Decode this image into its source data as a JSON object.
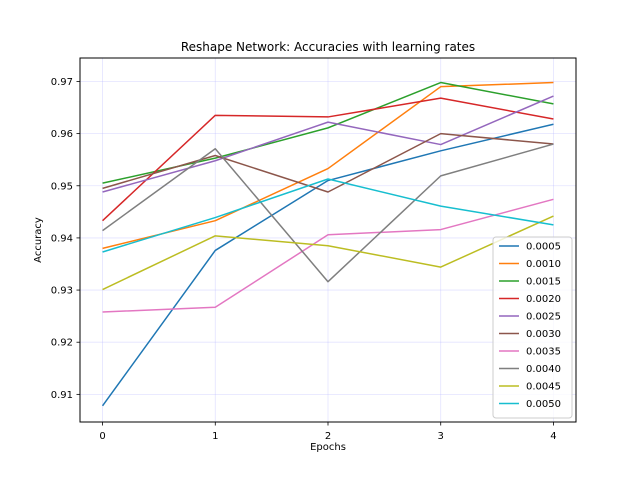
{
  "chart_data": {
    "type": "line",
    "title": "Reshape Network: Accuracies with learning rates",
    "xlabel": "Epochs",
    "ylabel": "Accuracy",
    "x": [
      0,
      1,
      2,
      3,
      4
    ],
    "xlim": [
      -0.2,
      4.2
    ],
    "ylim": [
      0.9047,
      0.9745
    ],
    "yticks": [
      0.91,
      0.92,
      0.93,
      0.94,
      0.95,
      0.96,
      0.97
    ],
    "ytick_labels": [
      "0.91",
      "0.92",
      "0.93",
      "0.94",
      "0.95",
      "0.96",
      "0.97"
    ],
    "xticks": [
      0,
      1,
      2,
      3,
      4
    ],
    "xtick_labels": [
      "0",
      "1",
      "2",
      "3",
      "4"
    ],
    "grid": true,
    "legend_position": "bottom-right",
    "series": [
      {
        "name": "0.0005",
        "color": "#1f77b4",
        "values": [
          0.9078,
          0.9376,
          0.951,
          0.9567,
          0.9618
        ]
      },
      {
        "name": "0.0010",
        "color": "#ff7f0e",
        "values": [
          0.938,
          0.9433,
          0.9533,
          0.969,
          0.9698
        ]
      },
      {
        "name": "0.0015",
        "color": "#2ca02c",
        "values": [
          0.9505,
          0.9553,
          0.9611,
          0.9698,
          0.9657
        ]
      },
      {
        "name": "0.0020",
        "color": "#d62728",
        "values": [
          0.9433,
          0.9635,
          0.9632,
          0.9668,
          0.9628
        ]
      },
      {
        "name": "0.0025",
        "color": "#9467bd",
        "values": [
          0.9488,
          0.9548,
          0.9622,
          0.9579,
          0.9672
        ]
      },
      {
        "name": "0.0030",
        "color": "#8c564b",
        "values": [
          0.9495,
          0.9558,
          0.9488,
          0.96,
          0.958
        ]
      },
      {
        "name": "0.0035",
        "color": "#e377c2",
        "values": [
          0.9258,
          0.9267,
          0.9406,
          0.9416,
          0.9474
        ]
      },
      {
        "name": "0.0040",
        "color": "#7f7f7f",
        "values": [
          0.9414,
          0.9571,
          0.9316,
          0.9519,
          0.958
        ]
      },
      {
        "name": "0.0045",
        "color": "#bcbd22",
        "values": [
          0.9301,
          0.9404,
          0.9385,
          0.9344,
          0.9442
        ]
      },
      {
        "name": "0.0050",
        "color": "#17becf",
        "values": [
          0.9373,
          0.9439,
          0.9513,
          0.9461,
          0.9425
        ]
      }
    ]
  }
}
